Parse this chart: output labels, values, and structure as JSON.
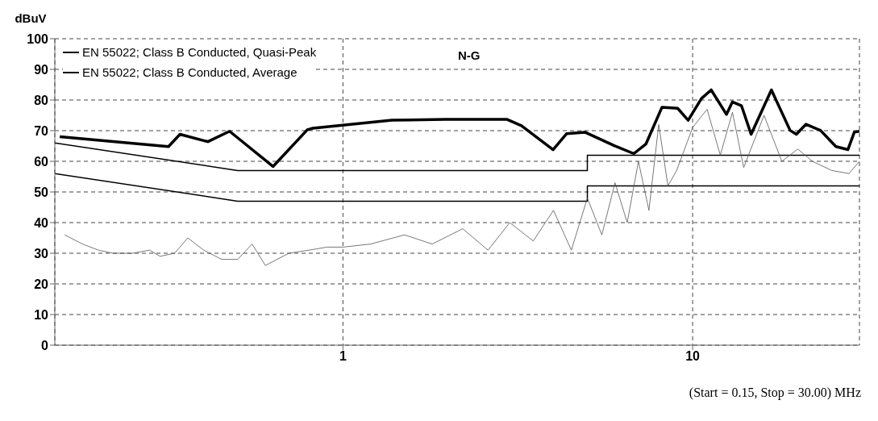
{
  "chart_data": {
    "type": "line",
    "ylabel": "dBuV",
    "xlabel": "(Start = 0.15, Stop = 30.00) MHz",
    "annotations": [
      "N-G"
    ],
    "log": "x",
    "xlim": [
      0.15,
      30
    ],
    "xticks": [
      1,
      10
    ],
    "ylim": [
      0,
      100
    ],
    "yticks": [
      0,
      10,
      20,
      30,
      40,
      50,
      60,
      70,
      80,
      90,
      100
    ],
    "grid": true,
    "legend": "top left",
    "marker": "none",
    "series": [
      {
        "name": "EN 55022; Class B Conducted, Quasi-Peak",
        "color": "#000000",
        "x": [
          0.15,
          0.5,
          5,
          5,
          30
        ],
        "values": [
          66,
          57,
          57,
          62,
          62
        ]
      },
      {
        "name": "EN 55022; Class B Conducted, Average",
        "color": "#000000",
        "x": [
          0.15,
          0.5,
          5,
          5,
          30
        ],
        "values": [
          56,
          47,
          47,
          52,
          52
        ]
      },
      {
        "color": "#000000",
        "x": [
          0.155,
          0.317,
          0.342,
          0.411,
          0.474,
          0.631,
          0.791,
          0.82,
          1.38,
          1.96,
          2.94,
          3.24,
          3.99,
          4.36,
          4.92,
          5.97,
          6.79,
          7.35,
          8.17,
          9.06,
          9.71,
          10.6,
          11.3,
          12.5,
          13,
          13.8,
          14.7,
          16.8,
          19,
          19.8,
          21.1,
          23.2,
          25.7,
          27.8,
          29,
          30
        ],
        "values": [
          68,
          64.8,
          68.8,
          66.4,
          69.8,
          58.3,
          70.3,
          70.8,
          73.4,
          73.7,
          73.7,
          71.6,
          63.8,
          69,
          69.5,
          65.1,
          62.5,
          65.6,
          77.6,
          77.3,
          73.4,
          80.5,
          83.3,
          75.3,
          79.4,
          78.1,
          68.8,
          83.3,
          70.1,
          68.8,
          72.1,
          70.1,
          64.8,
          63.8,
          69.5,
          69.8
        ]
      },
      {
        "color": "#555555",
        "x": [
          0.16,
          0.18,
          0.2,
          0.22,
          0.25,
          0.28,
          0.3,
          0.33,
          0.36,
          0.4,
          0.45,
          0.5,
          0.55,
          0.6,
          0.7,
          0.8,
          0.9,
          1.0,
          1.2,
          1.5,
          1.8,
          2.2,
          2.6,
          3.0,
          3.5,
          4.0,
          4.5,
          5.0,
          5.5,
          6.0,
          6.5,
          7.0,
          7.5,
          8.0,
          8.5,
          9.0,
          10,
          11,
          12,
          13,
          14,
          16,
          18,
          20,
          22,
          25,
          28,
          30
        ],
        "values": [
          36,
          33,
          31,
          30,
          30,
          31,
          29,
          30,
          35,
          31,
          28,
          28,
          33,
          26,
          30,
          31,
          32,
          32,
          33,
          36,
          33,
          38,
          31,
          40,
          34,
          44,
          31,
          48,
          36,
          53,
          40,
          60,
          44,
          72,
          52,
          57,
          71,
          77,
          62,
          76,
          58,
          75,
          60,
          64,
          60,
          57,
          56,
          60
        ]
      }
    ]
  }
}
